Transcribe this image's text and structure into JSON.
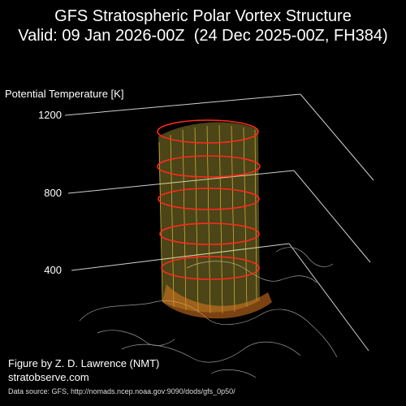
{
  "title_line1": "GFS Stratospheric Polar Vortex Structure",
  "title_line2": "Valid: 09 Jan 2026-00Z  (24 Dec 2025-00Z, FH384)",
  "axis": {
    "label": "Potential Temperature [K]",
    "ticks": [
      "1200",
      "800",
      "400"
    ]
  },
  "credit_line1": "Figure by Z. D. Lawrence (NMT)",
  "credit_line2": "stratobserve.com",
  "source": "Data source: GFS, http://nomads.ncep.noaa.gov:9090/dods/gfs_0p50/",
  "colors": {
    "background": "#000000",
    "vortex_fill": "#e8d84a",
    "vortex_highlight": "#ff2a1a",
    "vortex_low": "#e07a20",
    "coastline": "#9a9a9a",
    "axis_lines": "#cfcfcf"
  }
}
